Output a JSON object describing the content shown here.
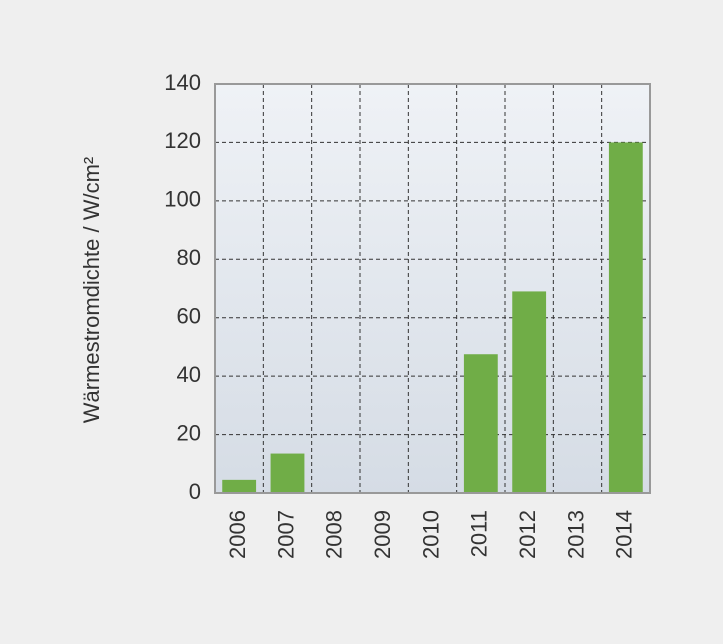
{
  "chart_data": {
    "type": "bar",
    "y_label": "Wärmestromdichte / W/cm²",
    "categories": [
      "2006",
      "2007",
      "2008",
      "2009",
      "2010",
      "2011",
      "2012",
      "2013",
      "2014"
    ],
    "values": [
      4.5,
      13.5,
      null,
      null,
      null,
      47.5,
      69,
      null,
      120
    ],
    "color": "#70ad47",
    "ylim": [
      0,
      140
    ],
    "yticks": [
      0,
      20,
      40,
      60,
      80,
      100,
      120,
      140
    ],
    "grid": true
  }
}
